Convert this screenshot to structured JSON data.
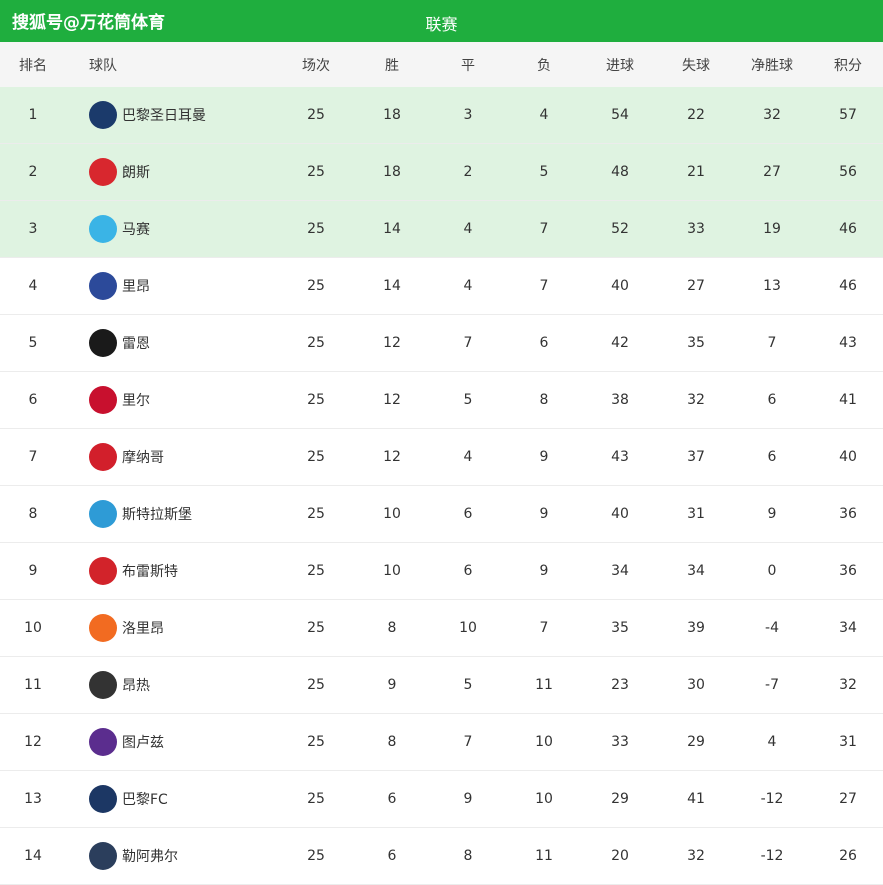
{
  "header": {
    "watermark": "搜狐号@万花筒体育",
    "title": "联赛"
  },
  "table": {
    "columns": [
      "排名",
      "球队",
      "场次",
      "胜",
      "平",
      "负",
      "进球",
      "失球",
      "净胜球",
      "积分"
    ],
    "rows": [
      [
        1,
        "巴黎圣日耳曼",
        25,
        18,
        3,
        4,
        54,
        22,
        32,
        57
      ],
      [
        2,
        "朗斯",
        25,
        18,
        2,
        5,
        48,
        21,
        27,
        56
      ],
      [
        3,
        "马赛",
        25,
        14,
        4,
        7,
        52,
        33,
        19,
        46
      ],
      [
        4,
        "里昂",
        25,
        14,
        4,
        7,
        40,
        27,
        13,
        46
      ],
      [
        5,
        "雷恩",
        25,
        12,
        7,
        6,
        42,
        35,
        7,
        43
      ],
      [
        6,
        "里尔",
        25,
        12,
        5,
        8,
        38,
        32,
        6,
        41
      ],
      [
        7,
        "摩纳哥",
        25,
        12,
        4,
        9,
        43,
        37,
        6,
        40
      ],
      [
        8,
        "斯特拉斯堡",
        25,
        10,
        6,
        9,
        40,
        31,
        9,
        36
      ],
      [
        9,
        "布雷斯特",
        25,
        10,
        6,
        9,
        34,
        34,
        0,
        36
      ],
      [
        10,
        "洛里昂",
        25,
        8,
        10,
        7,
        35,
        39,
        -4,
        34
      ],
      [
        11,
        "昂热",
        25,
        9,
        5,
        11,
        23,
        30,
        -7,
        32
      ],
      [
        12,
        "图卢兹",
        25,
        8,
        7,
        10,
        33,
        29,
        4,
        31
      ],
      [
        13,
        "巴黎FC",
        25,
        6,
        9,
        10,
        29,
        41,
        -12,
        27
      ],
      [
        14,
        "勒阿弗尔",
        25,
        6,
        8,
        11,
        20,
        32,
        -12,
        26
      ]
    ]
  }
}
